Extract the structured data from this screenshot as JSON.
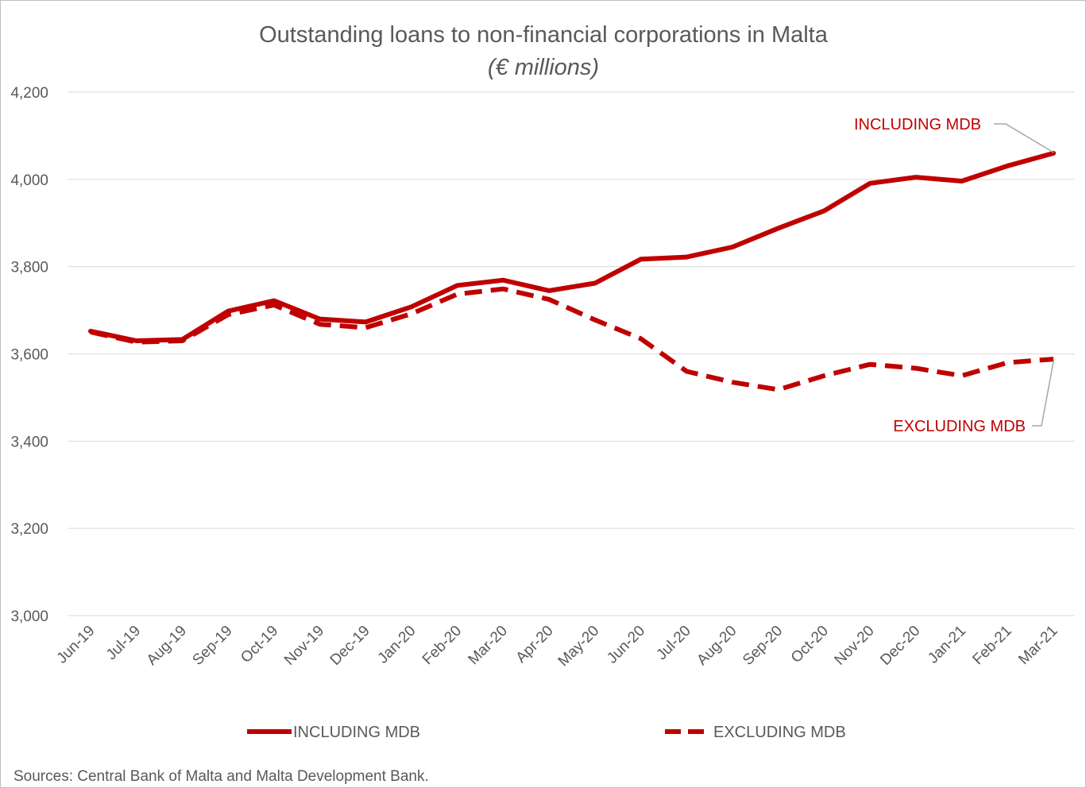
{
  "chart_data": {
    "type": "line",
    "title": "Outstanding loans to non-financial corporations in Malta",
    "subtitle": "(€ millions)",
    "categories": [
      "Jun-19",
      "Jul-19",
      "Aug-19",
      "Sep-19",
      "Oct-19",
      "Nov-19",
      "Dec-19",
      "Jan-20",
      "Feb-20",
      "Mar-20",
      "Apr-20",
      "May-20",
      "Jun-20",
      "Jul-20",
      "Aug-20",
      "Sep-20",
      "Oct-20",
      "Nov-20",
      "Dec-20",
      "Jan-21",
      "Feb-21",
      "Mar-21"
    ],
    "ylim": [
      3000,
      4200
    ],
    "yticks": [
      3000,
      3200,
      3400,
      3600,
      3800,
      4000,
      4200
    ],
    "ytick_labels": [
      "3,000",
      "3,200",
      "3,400",
      "3,600",
      "3,800",
      "4,000",
      "4,200"
    ],
    "grid": true,
    "legend_position": "bottom",
    "series": [
      {
        "name": "INCLUDING MDB",
        "style": "solid",
        "color": "#c00000",
        "values": [
          3652,
          3630,
          3633,
          3698,
          3722,
          3680,
          3673,
          3708,
          3757,
          3769,
          3745,
          3762,
          3817,
          3822,
          3845,
          3888,
          3928,
          3991,
          4005,
          3996,
          4031,
          4060
        ]
      },
      {
        "name": "EXCLUDING MDB",
        "style": "dashed",
        "color": "#c00000",
        "values": [
          3650,
          3627,
          3630,
          3690,
          3712,
          3668,
          3660,
          3692,
          3737,
          3749,
          3725,
          3678,
          3635,
          3560,
          3535,
          3518,
          3550,
          3576,
          3567,
          3550,
          3580,
          3588
        ]
      }
    ],
    "annotations": [
      {
        "text": "INCLUDING MDB",
        "series": 0,
        "point": 21
      },
      {
        "text": "EXCLUDING MDB",
        "series": 1,
        "point": 21
      }
    ],
    "source": "Sources: Central Bank of Malta and Malta Development  Bank."
  }
}
